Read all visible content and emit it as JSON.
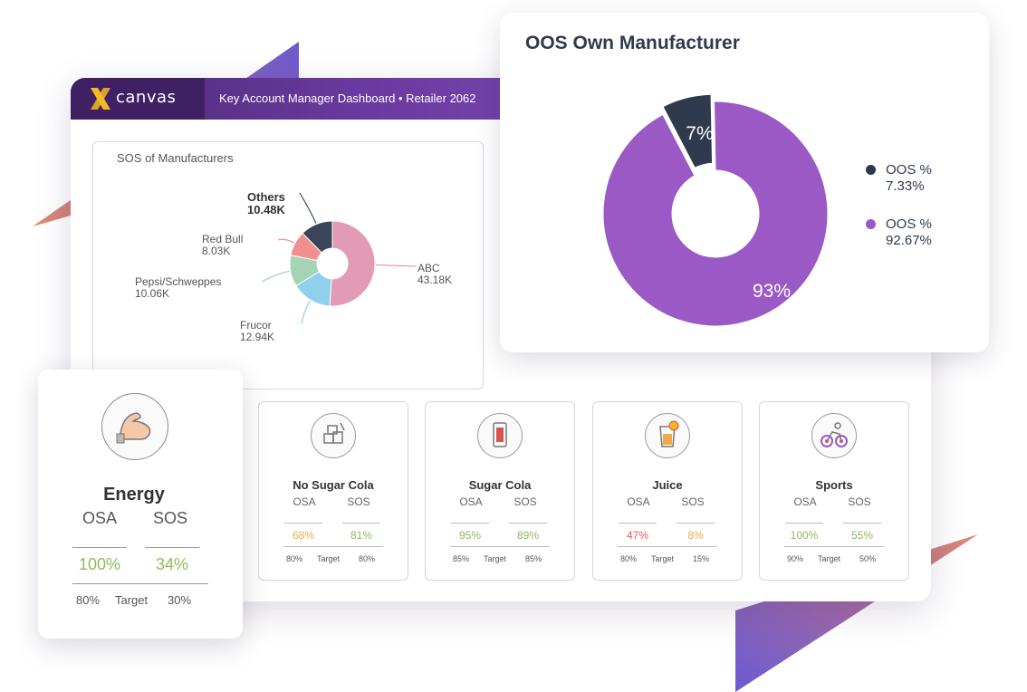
{
  "colors": {
    "purple": "#9b59c6",
    "navy": "#2f3a4e",
    "abc": "#e39ab5",
    "frucor": "#8fd0ec",
    "pepsi": "#a6d3b6",
    "redbull": "#ef8f8f",
    "others": "#3a4658",
    "green": "#8dbb5a",
    "orange": "#f0a94a",
    "red": "#e05c5c"
  },
  "header": {
    "logo_text": "canvas",
    "title": "Key Account Manager Dashboard • Retailer 2062"
  },
  "sos_panel": {
    "title": "SOS of Manufacturers",
    "chart_data": {
      "type": "pie",
      "categories": [
        "ABC",
        "Frucor",
        "Pepsi/Schweppes",
        "Red Bull",
        "Others"
      ],
      "values": [
        43.18,
        12.94,
        10.06,
        8.03,
        10.48
      ],
      "value_labels": [
        "43.18K",
        "12.94K",
        "10.06K",
        "8.03K",
        "10.48K"
      ]
    }
  },
  "oos_panel": {
    "title": "OOS Own Manufacturer",
    "chart_data": {
      "type": "pie",
      "categories": [
        "OOS %",
        "OOS %"
      ],
      "values": [
        7.33,
        92.67
      ],
      "slice_labels": [
        "7%",
        "93%"
      ],
      "legend": [
        {
          "label": "OOS %",
          "value": "7.33%"
        },
        {
          "label": "OOS %",
          "value": "92.67%"
        }
      ]
    }
  },
  "energy_card": {
    "name": "Energy",
    "osa_label": "OSA",
    "sos_label": "SOS",
    "osa_value": "100%",
    "sos_value": "34%",
    "osa_target": "80%",
    "target_label": "Target",
    "sos_target": "30%"
  },
  "categories": [
    {
      "name": "No Sugar Cola",
      "osa_label": "OSA",
      "sos_label": "SOS",
      "osa_value": "68%",
      "sos_value": "81%",
      "osa_target": "80%",
      "target_label": "Target",
      "sos_target": "80%"
    },
    {
      "name": "Sugar Cola",
      "osa_label": "OSA",
      "sos_label": "SOS",
      "osa_value": "95%",
      "sos_value": "89%",
      "osa_target": "85%",
      "target_label": "Target",
      "sos_target": "85%"
    },
    {
      "name": "Juice",
      "osa_label": "OSA",
      "sos_label": "SOS",
      "osa_value": "47%",
      "sos_value": "8%",
      "osa_target": "80%",
      "target_label": "Target",
      "sos_target": "15%"
    },
    {
      "name": "Sports",
      "osa_label": "OSA",
      "sos_label": "SOS",
      "osa_value": "100%",
      "sos_value": "55%",
      "osa_target": "90%",
      "target_label": "Target",
      "sos_target": "50%"
    }
  ]
}
